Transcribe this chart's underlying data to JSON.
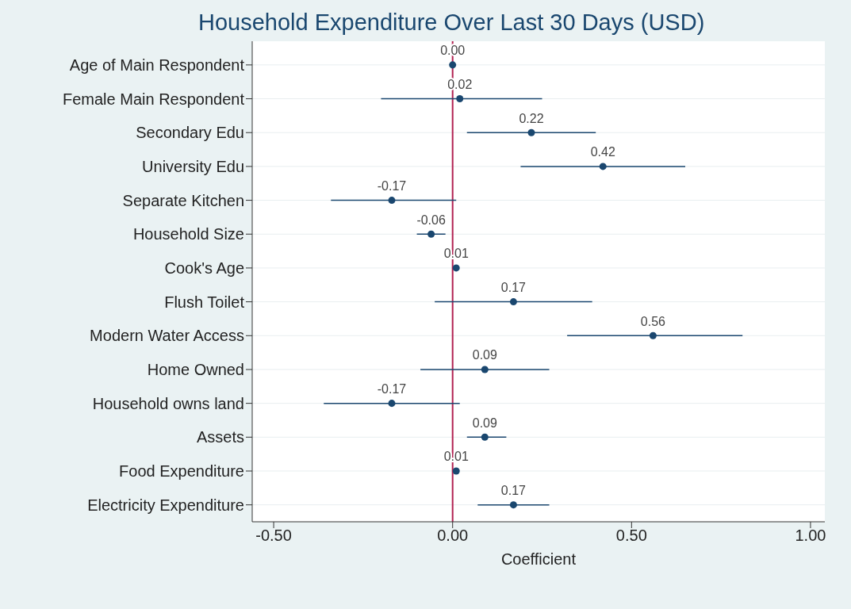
{
  "chart_data": {
    "type": "scatter",
    "orientation": "horizontal",
    "title": "Household Expenditure Over Last 30 Days (USD)",
    "xlabel": "Coefficient",
    "categories": [
      "Age of Main Respondent",
      "Female Main Respondent",
      "Secondary Edu",
      "University Edu",
      "Separate Kitchen",
      "Household Size",
      "Cook's Age",
      "Flush Toilet",
      "Modern Water Access",
      "Home Owned",
      "Household owns land",
      "Assets",
      "Food Expenditure",
      "Electricity Expenditure"
    ],
    "values": [
      0.0,
      0.02,
      0.22,
      0.42,
      -0.17,
      -0.06,
      0.01,
      0.17,
      0.56,
      0.09,
      -0.17,
      0.09,
      0.01,
      0.17
    ],
    "value_labels": [
      "0.00",
      "0.02",
      "0.22",
      "0.42",
      "-0.17",
      "-0.06",
      "0.01",
      "0.17",
      "0.56",
      "0.09",
      "-0.17",
      "0.09",
      "0.01",
      "0.17"
    ],
    "errors": [
      null,
      [
        -0.2,
        0.25
      ],
      [
        0.04,
        0.4
      ],
      [
        0.19,
        0.65
      ],
      [
        -0.34,
        0.01
      ],
      [
        -0.1,
        -0.02
      ],
      null,
      [
        -0.05,
        0.39
      ],
      [
        0.32,
        0.81
      ],
      [
        -0.09,
        0.27
      ],
      [
        -0.36,
        0.02
      ],
      [
        0.04,
        0.15
      ],
      null,
      [
        0.07,
        0.27
      ]
    ],
    "color": "#1a476f",
    "marker": "circle",
    "grid": "y",
    "legend": false,
    "xlim": [
      -0.56,
      1.04
    ],
    "xticks": [
      {
        "value": -0.5,
        "label": "-0.50"
      },
      {
        "value": 0,
        "label": "0.00"
      },
      {
        "value": 0.5,
        "label": "0.50"
      },
      {
        "value": 1,
        "label": "1.00"
      }
    ],
    "ref_lines": [
      {
        "axis": "x",
        "value": 0,
        "color": "#b22252"
      }
    ]
  }
}
